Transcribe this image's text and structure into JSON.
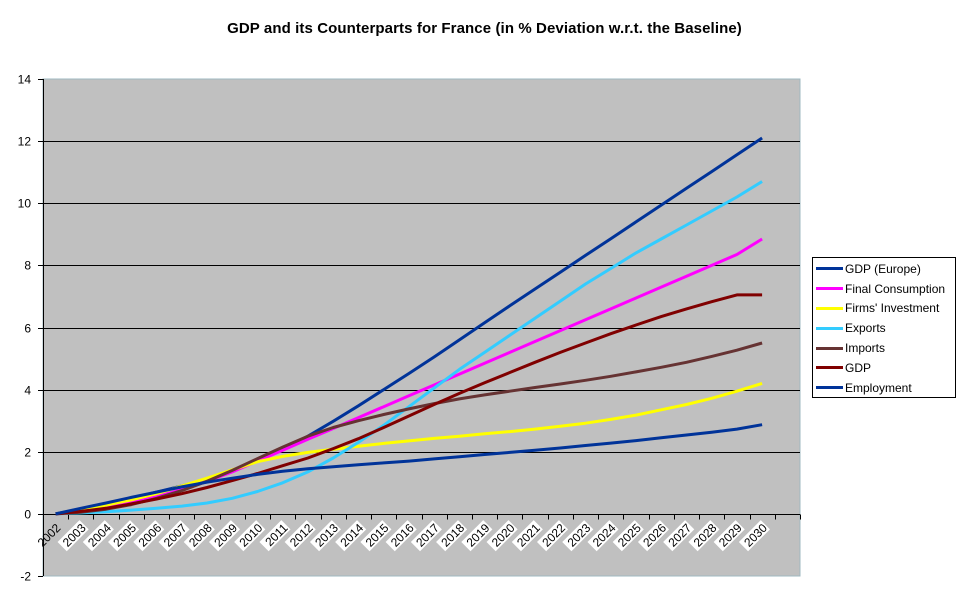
{
  "chart_data": {
    "type": "line",
    "title": "GDP and its Counterparts for France (in % Deviation w.r.t. the Baseline)",
    "xlabel": "",
    "ylabel": "",
    "ylim": [
      -2,
      14
    ],
    "yticks": [
      14,
      12,
      10,
      8,
      6,
      4,
      2,
      0,
      -2
    ],
    "grid": true,
    "legend_position": "right",
    "plot_background": "#C0C0C0",
    "x": [
      "2002",
      "2003",
      "2004",
      "2005",
      "2006",
      "2007",
      "2008",
      "2009",
      "2010",
      "2011",
      "2012",
      "2013",
      "2014",
      "2015",
      "2016",
      "2017",
      "2018",
      "2019",
      "2020",
      "2021",
      "2022",
      "2023",
      "2024",
      "2025",
      "2026",
      "2027",
      "2028",
      "2029",
      "2030"
    ],
    "series": [
      {
        "name": "GDP (Europe)",
        "color": "#003399",
        "values": [
          0,
          0.15,
          0.32,
          0.5,
          0.7,
          0.9,
          1.12,
          1.38,
          1.7,
          2.08,
          2.5,
          2.98,
          3.48,
          4.0,
          4.52,
          5.05,
          5.6,
          6.15,
          6.7,
          7.24,
          7.78,
          8.32,
          8.86,
          9.4,
          9.94,
          10.48,
          11.02,
          11.56,
          12.1
        ]
      },
      {
        "name": "Final Consumption",
        "color": "#FF00FF",
        "values": [
          0,
          0.1,
          0.22,
          0.38,
          0.55,
          0.78,
          1.05,
          1.35,
          1.7,
          2.05,
          2.4,
          2.75,
          3.1,
          3.45,
          3.8,
          4.15,
          4.5,
          4.85,
          5.2,
          5.55,
          5.9,
          6.25,
          6.6,
          6.95,
          7.3,
          7.65,
          8.0,
          8.35,
          8.85
        ]
      },
      {
        "name": "Firms' Investment",
        "color": "#FFFF00",
        "values": [
          0,
          0.12,
          0.28,
          0.45,
          0.65,
          0.9,
          1.15,
          1.42,
          1.68,
          1.85,
          1.98,
          2.08,
          2.18,
          2.27,
          2.35,
          2.43,
          2.5,
          2.58,
          2.65,
          2.73,
          2.82,
          2.92,
          3.04,
          3.18,
          3.35,
          3.52,
          3.72,
          3.95,
          4.2
        ]
      },
      {
        "name": "Exports",
        "color": "#33CCFF",
        "values": [
          0,
          0.03,
          0.07,
          0.12,
          0.18,
          0.25,
          0.35,
          0.5,
          0.72,
          1.0,
          1.35,
          1.8,
          2.3,
          2.85,
          3.45,
          4.05,
          4.65,
          5.2,
          5.75,
          6.3,
          6.85,
          7.4,
          7.9,
          8.4,
          8.85,
          9.3,
          9.75,
          10.2,
          10.7
        ]
      },
      {
        "name": "Imports",
        "color": "#663333",
        "values": [
          0,
          0.05,
          0.15,
          0.3,
          0.5,
          0.75,
          1.05,
          1.4,
          1.78,
          2.15,
          2.5,
          2.78,
          3.0,
          3.2,
          3.38,
          3.55,
          3.7,
          3.83,
          3.95,
          4.07,
          4.18,
          4.3,
          4.43,
          4.57,
          4.72,
          4.88,
          5.07,
          5.27,
          5.5
        ]
      },
      {
        "name": "GDP",
        "color": "#800000",
        "values": [
          0,
          0.08,
          0.18,
          0.32,
          0.48,
          0.65,
          0.85,
          1.07,
          1.3,
          1.55,
          1.8,
          2.1,
          2.42,
          2.78,
          3.15,
          3.52,
          3.88,
          4.22,
          4.55,
          4.88,
          5.2,
          5.5,
          5.8,
          6.08,
          6.35,
          6.6,
          6.83,
          7.05,
          7.05
        ]
      },
      {
        "name": "Employment",
        "color": "#003399",
        "values": [
          0,
          0.18,
          0.35,
          0.53,
          0.7,
          0.87,
          1.02,
          1.15,
          1.27,
          1.37,
          1.45,
          1.52,
          1.58,
          1.64,
          1.7,
          1.77,
          1.84,
          1.91,
          1.98,
          2.05,
          2.12,
          2.2,
          2.28,
          2.36,
          2.45,
          2.54,
          2.63,
          2.73,
          2.87
        ]
      }
    ]
  }
}
